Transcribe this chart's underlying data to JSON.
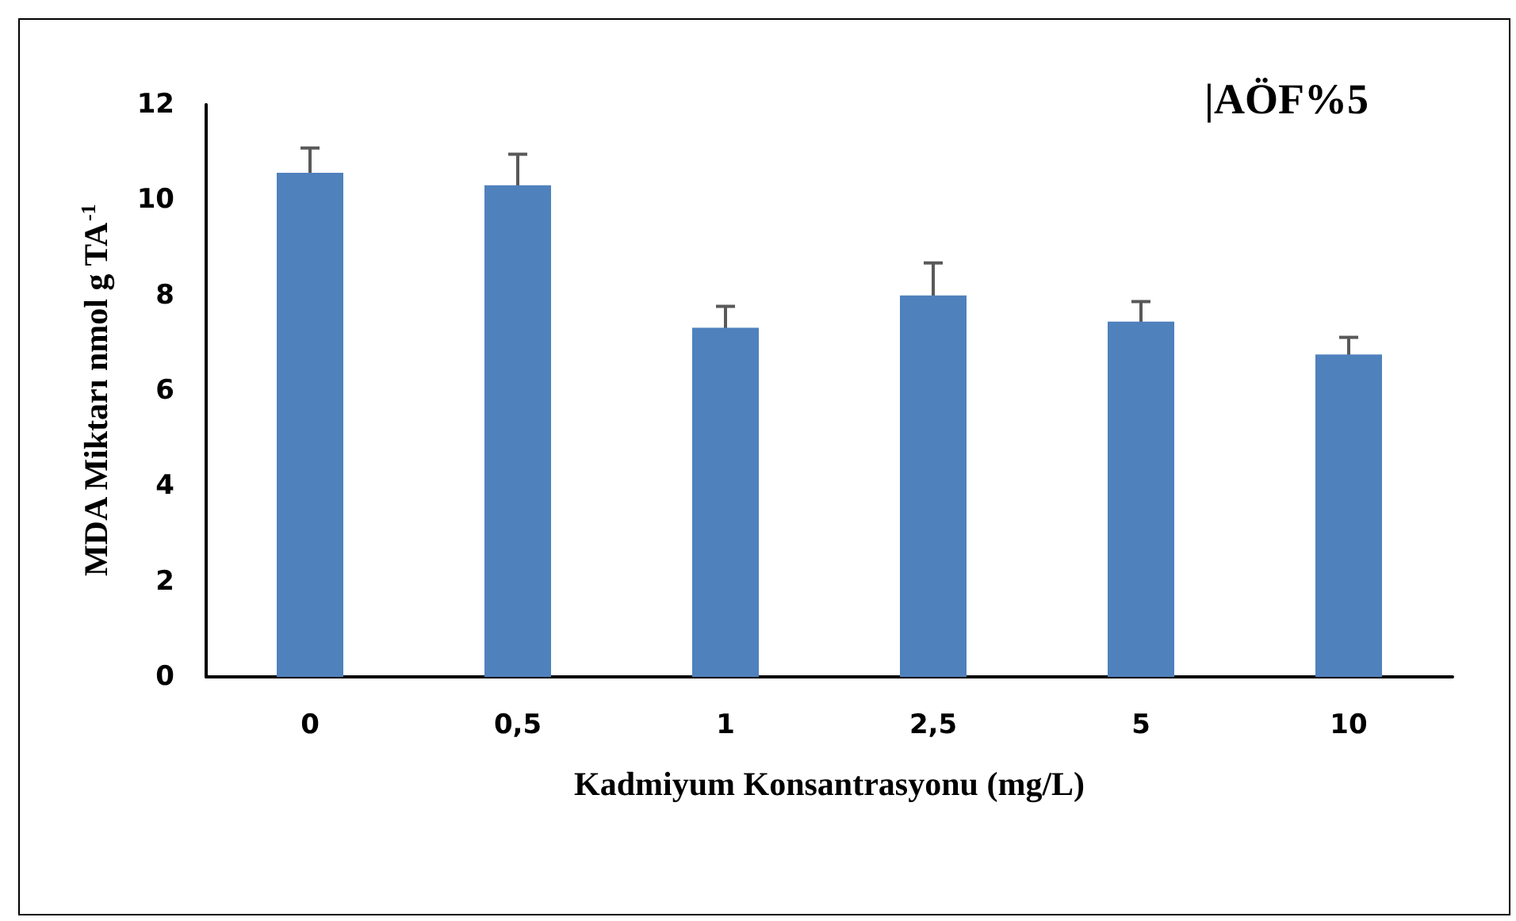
{
  "chart_data": {
    "type": "bar",
    "title": "|AÖF%5",
    "xlabel": "Kadmiyum Konsantrasyonu (mg/L)",
    "ylabel": "MDA Miktarı nmol g TA$^{-1}$",
    "categories": [
      "0",
      "0,5",
      "1",
      "2,5",
      "5",
      "10"
    ],
    "values": [
      10.57,
      10.31,
      7.32,
      8.0,
      7.45,
      6.76
    ],
    "errors": [
      0.52,
      0.65,
      0.45,
      0.68,
      0.42,
      0.36
    ],
    "color": "#4f81bd",
    "ylim": [
      0,
      12
    ],
    "yticks": [
      0,
      2,
      4,
      6,
      8,
      10,
      12
    ],
    "grid": false
  }
}
